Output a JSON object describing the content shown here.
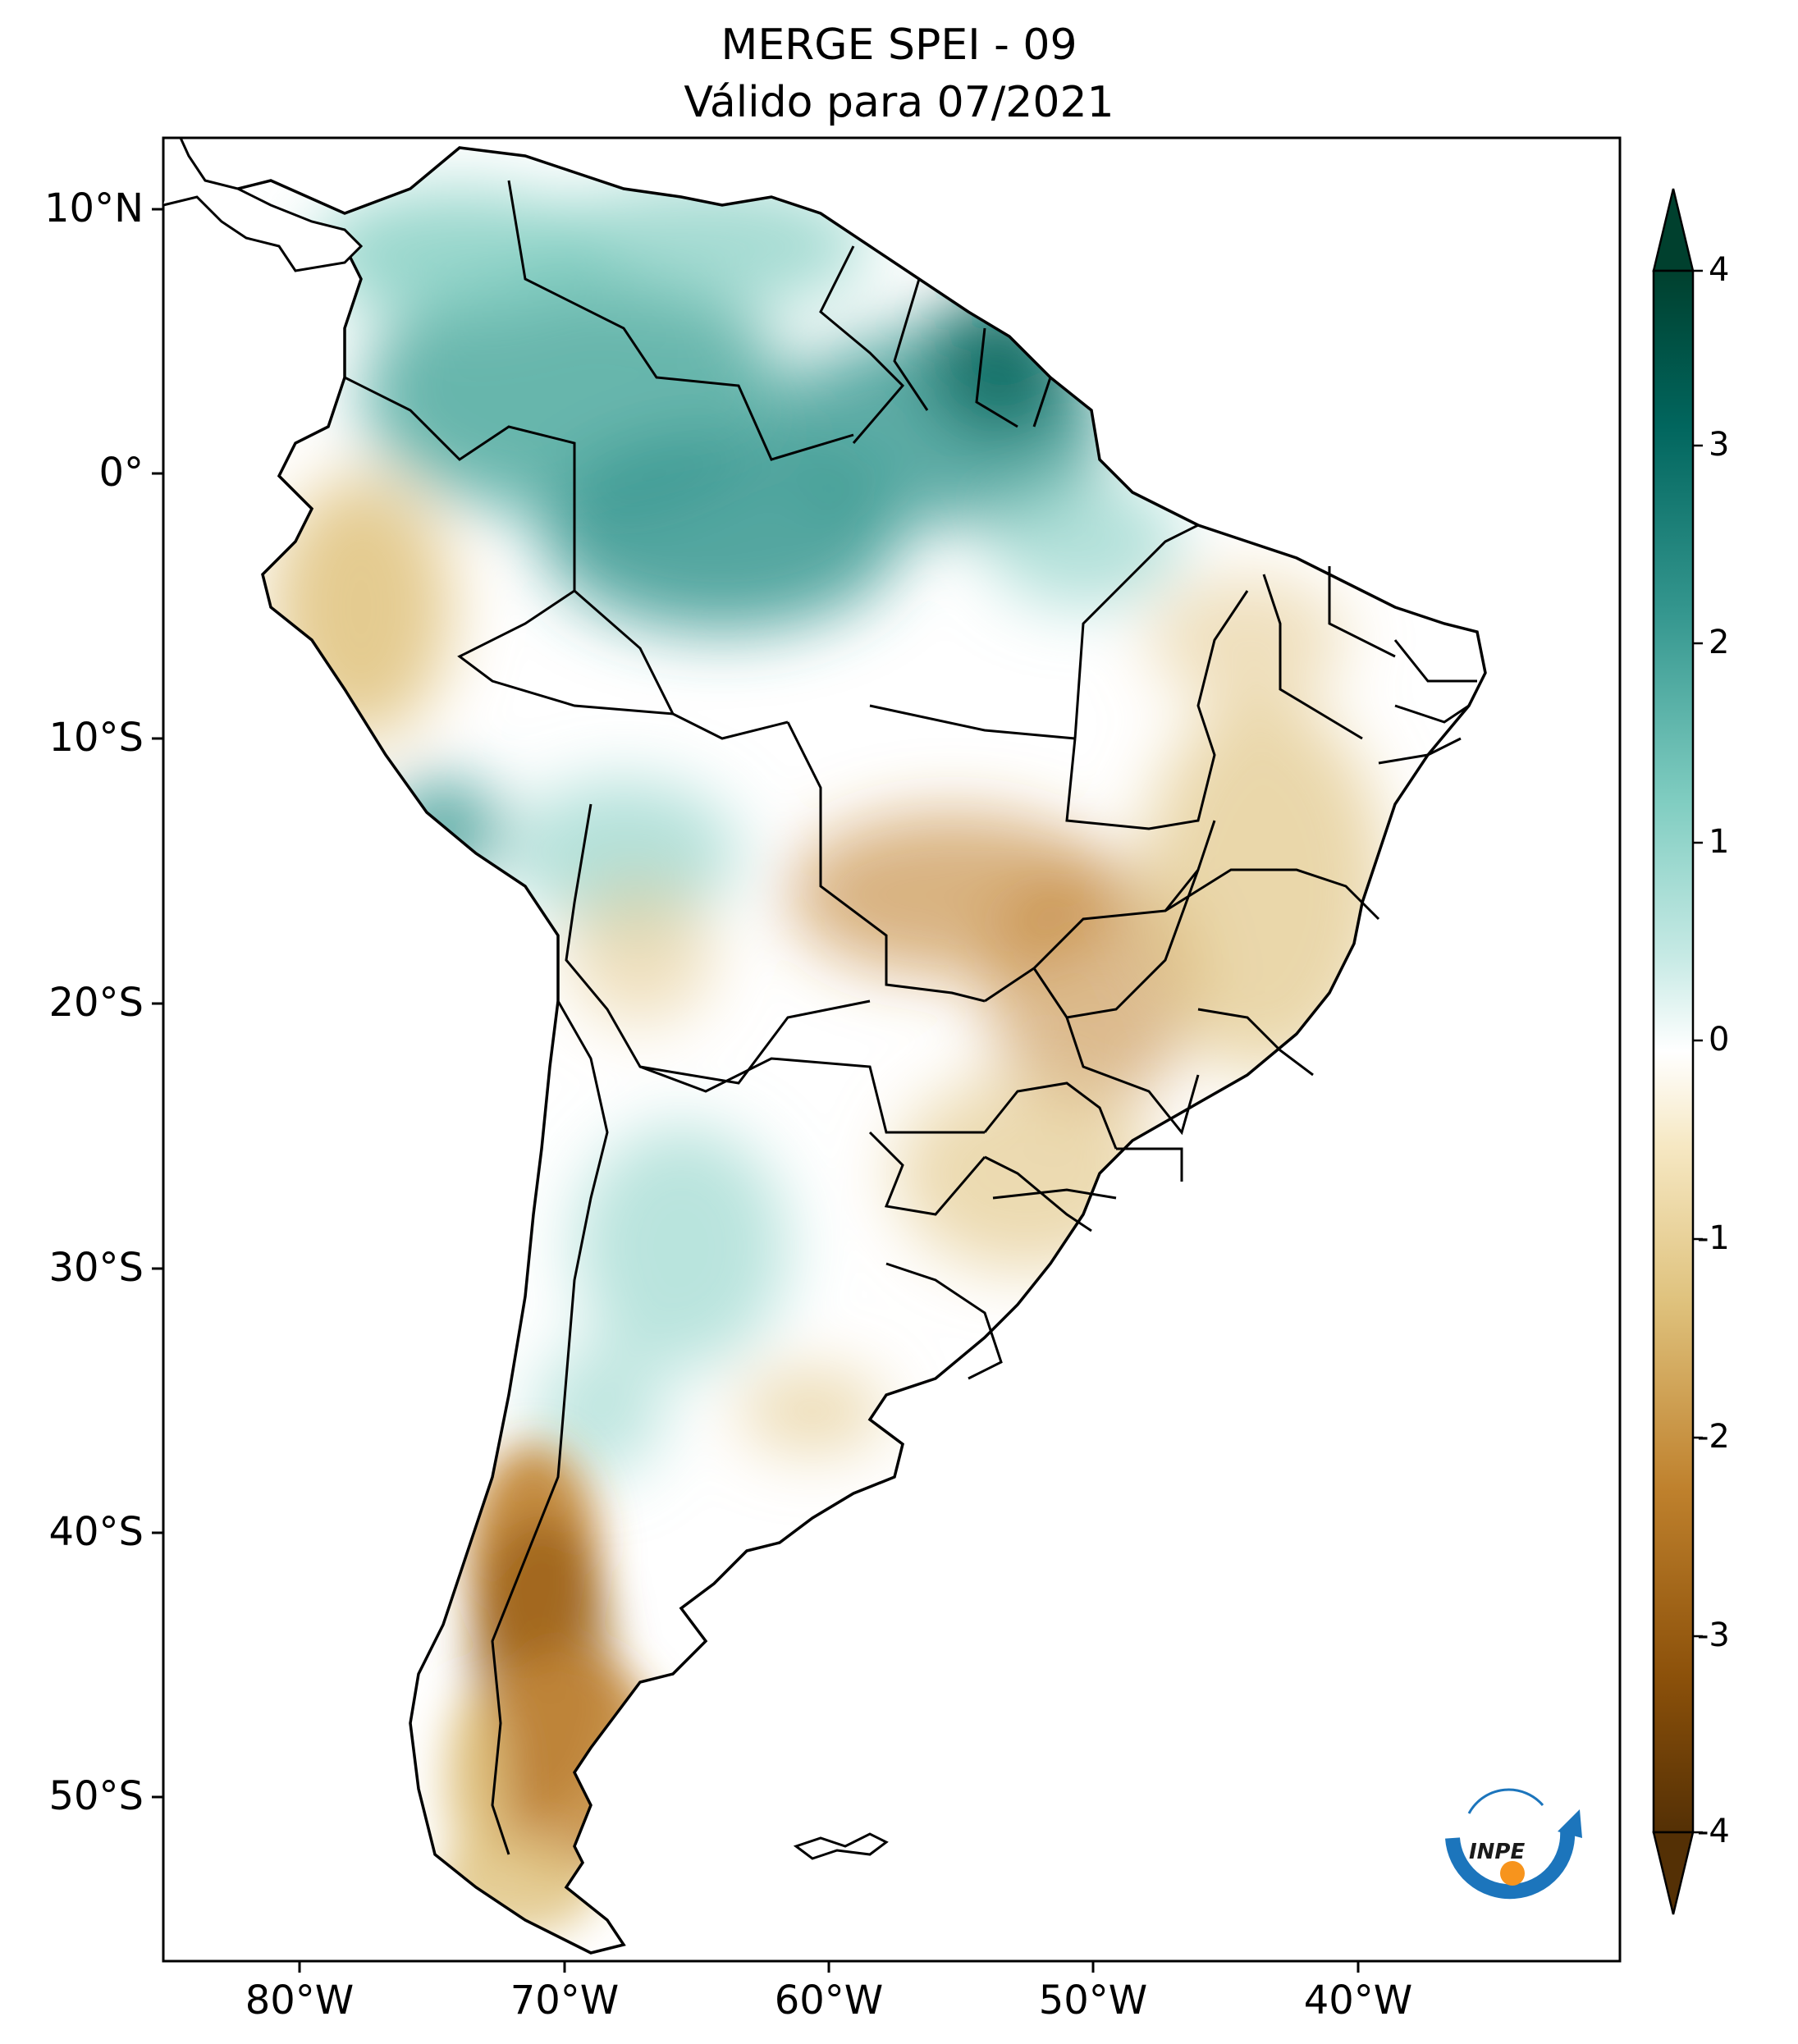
{
  "title_line1": "MERGE   SPEI - 09",
  "title_line2": "Válido para 07/2021",
  "lat_ticks": [
    "10°N",
    "0°",
    "10°S",
    "20°S",
    "30°S",
    "40°S",
    "50°S"
  ],
  "lon_ticks": [
    "80°W",
    "70°W",
    "60°W",
    "50°W",
    "40°W"
  ],
  "colorbar": {
    "ticks": [
      "4",
      "3",
      "2",
      "1",
      "0",
      "-1",
      "-2",
      "-3",
      "-4"
    ],
    "colors_top_to_bottom": [
      "#00402e",
      "#01665e",
      "#35978f",
      "#80cdc1",
      "#c7eae5",
      "#ffffff",
      "#f6e8c3",
      "#dfc27d",
      "#bf812d",
      "#8c510a",
      "#543005"
    ]
  },
  "logo": {
    "text": "INPE",
    "arc_color": "#1c75bc",
    "dot_color": "#f7941d"
  },
  "colors": {
    "teal": "#4ea99e",
    "brown": "#bf812d",
    "border": "#000000"
  }
}
